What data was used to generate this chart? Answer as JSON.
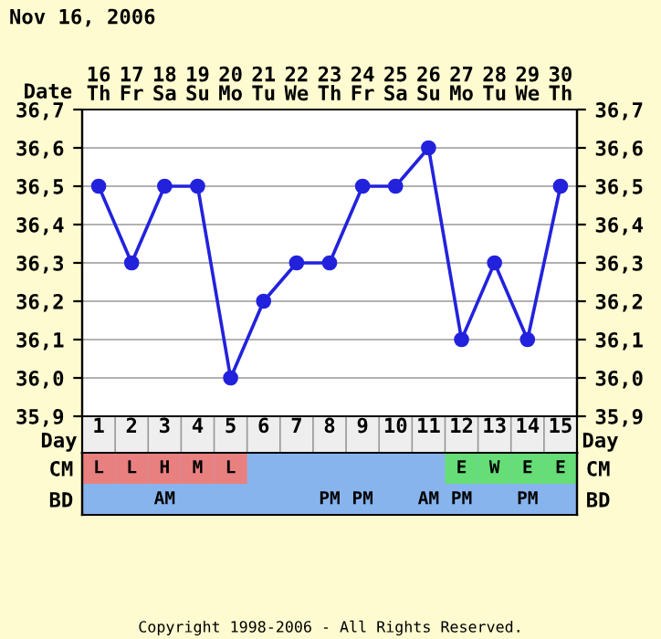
{
  "chart_data": [
    {
      "type": "line",
      "title": "Nov 16, 2006",
      "xlabel": "Date",
      "categories": [
        "16\nTh",
        "17\nFr",
        "18\nSa",
        "19\nSu",
        "20\nMo",
        "21\nTu",
        "22\nWe",
        "23\nTh",
        "24\nFr",
        "25\nSa",
        "26\nSu",
        "27\nMo",
        "28\nTu",
        "29\nWe",
        "30\nTh"
      ],
      "series": [
        {
          "color": "#2222dd",
          "values": [
            36.5,
            36.3,
            36.5,
            36.5,
            36.0,
            36.2,
            36.3,
            36.3,
            36.5,
            36.5,
            36.6,
            36.1,
            36.3,
            36.1,
            36.5
          ]
        }
      ],
      "ylim": [
        35.9,
        36.7
      ],
      "yticks": [
        {
          "value": 35.9,
          "label": "35,9"
        },
        {
          "value": 36.0,
          "label": "36,0"
        },
        {
          "value": 36.1,
          "label": "36,1"
        },
        {
          "value": 36.2,
          "label": "36,2"
        },
        {
          "value": 36.3,
          "label": "36,3"
        },
        {
          "value": 36.4,
          "label": "36,4"
        },
        {
          "value": 36.5,
          "label": "36,5"
        },
        {
          "value": 36.6,
          "label": "36,6"
        },
        {
          "value": 36.7,
          "label": "36,7"
        }
      ],
      "y2lim": [
        35.9,
        36.7
      ],
      "y2ticks": [
        {
          "value": 35.9,
          "label": "35,9"
        },
        {
          "value": 36.0,
          "label": "36,0"
        },
        {
          "value": 36.1,
          "label": "36,1"
        },
        {
          "value": 36.2,
          "label": "36,2"
        },
        {
          "value": 36.3,
          "label": "36,3"
        },
        {
          "value": 36.4,
          "label": "36,4"
        },
        {
          "value": 36.5,
          "label": "36,5"
        },
        {
          "value": 36.6,
          "label": "36,6"
        },
        {
          "value": 36.7,
          "label": "36,7"
        }
      ],
      "grid": true,
      "marker": "circle",
      "line_style": "solid",
      "legend": false
    },
    {
      "type": "heatmap",
      "xlabel": "Day",
      "categories": [
        "1",
        "2",
        "3",
        "4",
        "5",
        "6",
        "7",
        "8",
        "9",
        "10",
        "11",
        "12",
        "13",
        "14",
        "15"
      ],
      "y_categories": [
        "CM",
        "BD"
      ],
      "y2_categories": [
        "CM",
        "BD"
      ],
      "cells": [
        [
          null,
          null,
          null,
          null,
          null,
          null,
          null,
          null,
          null,
          null,
          null,
          null,
          null,
          null,
          null
        ],
        [
          null,
          null,
          null,
          null,
          null,
          null,
          null,
          null,
          null,
          null,
          null,
          null,
          null,
          null,
          null
        ]
      ],
      "cell_labels": [
        [
          "L",
          "L",
          "H",
          "M",
          "L",
          null,
          null,
          null,
          null,
          null,
          null,
          "E",
          "W",
          "E",
          "E"
        ],
        [
          null,
          null,
          "AM",
          null,
          null,
          null,
          null,
          "PM",
          "PM",
          null,
          "AM",
          "PM",
          null,
          "PM",
          null
        ]
      ],
      "colors": [
        [
          "#e88080",
          "#e88080",
          "#e88080",
          "#e88080",
          "#e88080",
          null,
          null,
          null,
          null,
          null,
          null,
          "#66dd77",
          "#66dd77",
          "#66dd77",
          "#66dd77"
        ],
        [
          null,
          null,
          null,
          null,
          null,
          null,
          null,
          null,
          null,
          null,
          null,
          null,
          null,
          null,
          null
        ]
      ],
      "annotations": [
        "Copyright 1998-2006 - All Rights Reserved."
      ]
    }
  ]
}
